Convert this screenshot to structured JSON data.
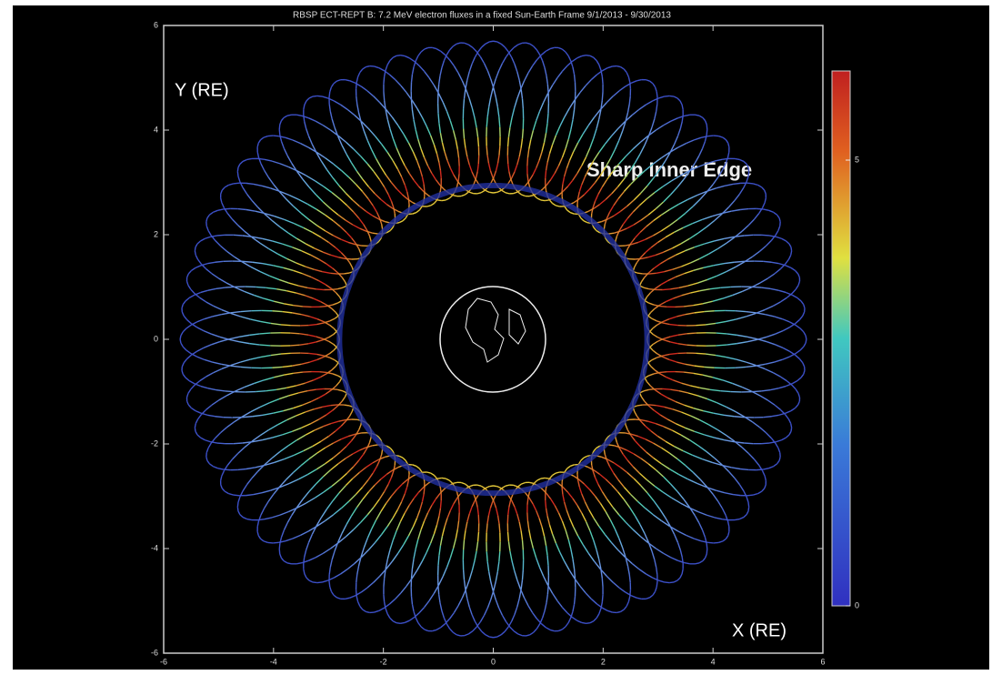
{
  "chart_data": {
    "type": "orbit-plot",
    "title": "RBSP ECT-REPT B: 7.2 MeV electron fluxes in a fixed Sun-Earth Frame 9/1/2013 - 9/30/2013",
    "xlabel": "X (RE)",
    "ylabel": "Y (RE)",
    "annotation": "Sharp Inner Edge",
    "xlim": [
      -6,
      6
    ],
    "xticks": [
      -6,
      -4,
      -2,
      0,
      2,
      4,
      6
    ],
    "ylim": [
      -6,
      6
    ],
    "yticks": [
      -6,
      -4,
      -2,
      0,
      2,
      4,
      6
    ],
    "colorbar_lim": [
      0,
      6
    ],
    "colorbar_ticks": [
      0,
      5
    ],
    "grid": false
  }
}
